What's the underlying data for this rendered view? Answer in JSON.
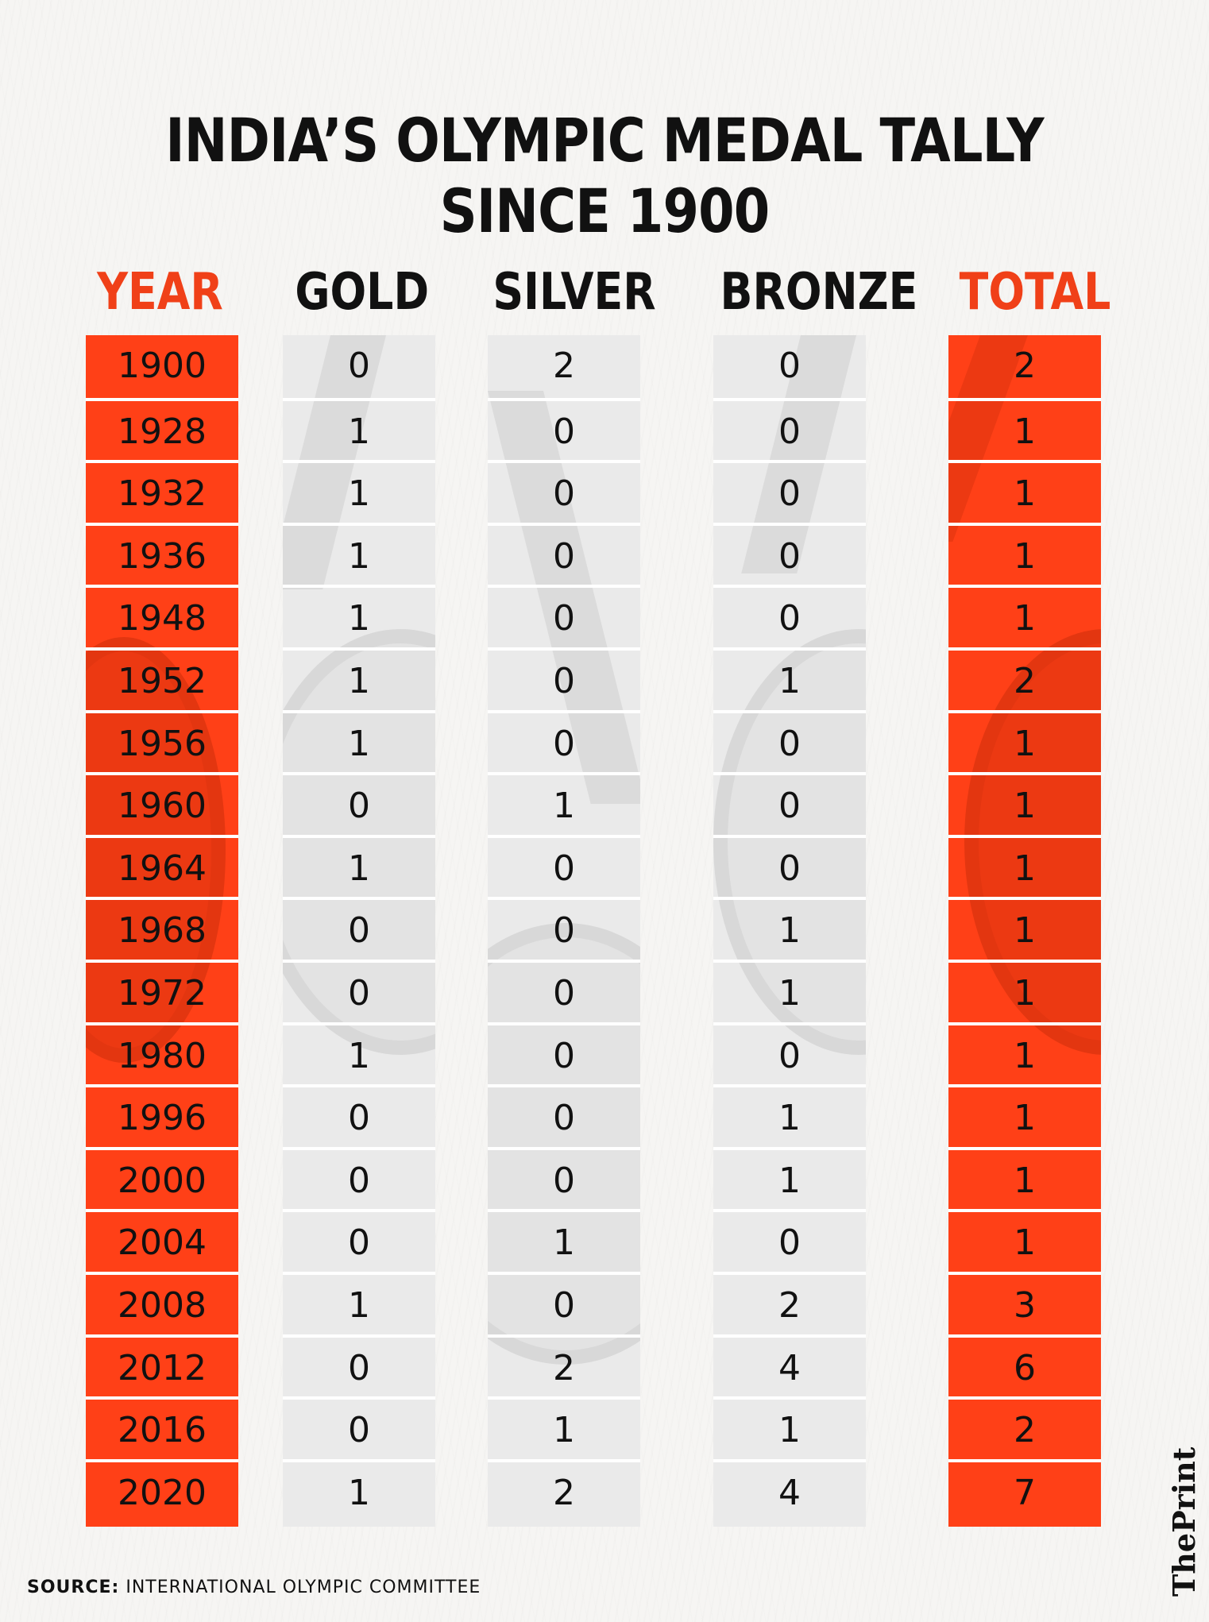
{
  "chart_data": {
    "type": "table",
    "title": "INDIA’S OLYMPIC MEDAL TALLY SINCE 1900",
    "columns": [
      "YEAR",
      "GOLD",
      "SILVER",
      "BRONZE",
      "TOTAL"
    ],
    "rows": [
      {
        "year": "1900",
        "gold": "0",
        "silver": "2",
        "bronze": "0",
        "total": "2"
      },
      {
        "year": "1928",
        "gold": "1",
        "silver": "0",
        "bronze": "0",
        "total": "1"
      },
      {
        "year": "1932",
        "gold": "1",
        "silver": "0",
        "bronze": "0",
        "total": "1"
      },
      {
        "year": "1936",
        "gold": "1",
        "silver": "0",
        "bronze": "0",
        "total": "1"
      },
      {
        "year": "1948",
        "gold": "1",
        "silver": "0",
        "bronze": "0",
        "total": "1"
      },
      {
        "year": "1952",
        "gold": "1",
        "silver": "0",
        "bronze": "1",
        "total": "2"
      },
      {
        "year": "1956",
        "gold": "1",
        "silver": "0",
        "bronze": "0",
        "total": "1"
      },
      {
        "year": "1960",
        "gold": "0",
        "silver": "1",
        "bronze": "0",
        "total": "1"
      },
      {
        "year": "1964",
        "gold": "1",
        "silver": "0",
        "bronze": "0",
        "total": "1"
      },
      {
        "year": "1968",
        "gold": "0",
        "silver": "0",
        "bronze": "1",
        "total": "1"
      },
      {
        "year": "1972",
        "gold": "0",
        "silver": "0",
        "bronze": "1",
        "total": "1"
      },
      {
        "year": "1980",
        "gold": "1",
        "silver": "0",
        "bronze": "0",
        "total": "1"
      },
      {
        "year": "1996",
        "gold": "0",
        "silver": "0",
        "bronze": "1",
        "total": "1"
      },
      {
        "year": "2000",
        "gold": "0",
        "silver": "0",
        "bronze": "1",
        "total": "1"
      },
      {
        "year": "2004",
        "gold": "0",
        "silver": "1",
        "bronze": "0",
        "total": "1"
      },
      {
        "year": "2008",
        "gold": "1",
        "silver": "0",
        "bronze": "2",
        "total": "3"
      },
      {
        "year": "2012",
        "gold": "0",
        "silver": "2",
        "bronze": "4",
        "total": "6"
      },
      {
        "year": "2016",
        "gold": "0",
        "silver": "1",
        "bronze": "1",
        "total": "2"
      },
      {
        "year": "2020",
        "gold": "1",
        "silver": "2",
        "bronze": "4",
        "total": "7"
      }
    ]
  },
  "source_label": "SOURCE:",
  "source_text": "INTERNATIONAL OLYMPIC COMMITTEE",
  "brand": "ThePrint",
  "colors": {
    "accent": "#ff4017",
    "header_accent": "#f04018",
    "medal_column": "#eaeaea",
    "text": "#111111"
  }
}
